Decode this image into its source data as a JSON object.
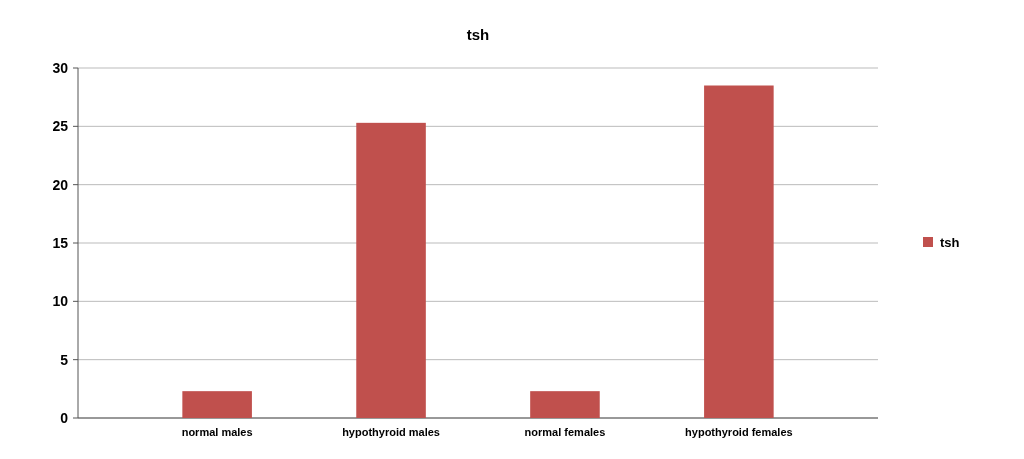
{
  "chart_data": {
    "type": "bar",
    "title": "tsh",
    "categories": [
      "normal males",
      "hypothyroid males",
      "normal females",
      "hypothyroid females"
    ],
    "series": [
      {
        "name": "tsh",
        "color": "#c0504d",
        "values": [
          2.3,
          25.3,
          2.3,
          28.5
        ]
      }
    ],
    "ylim": [
      0,
      30
    ],
    "yticks": [
      0,
      5,
      10,
      15,
      20,
      25,
      30
    ],
    "grid": "y",
    "legend": "right"
  }
}
